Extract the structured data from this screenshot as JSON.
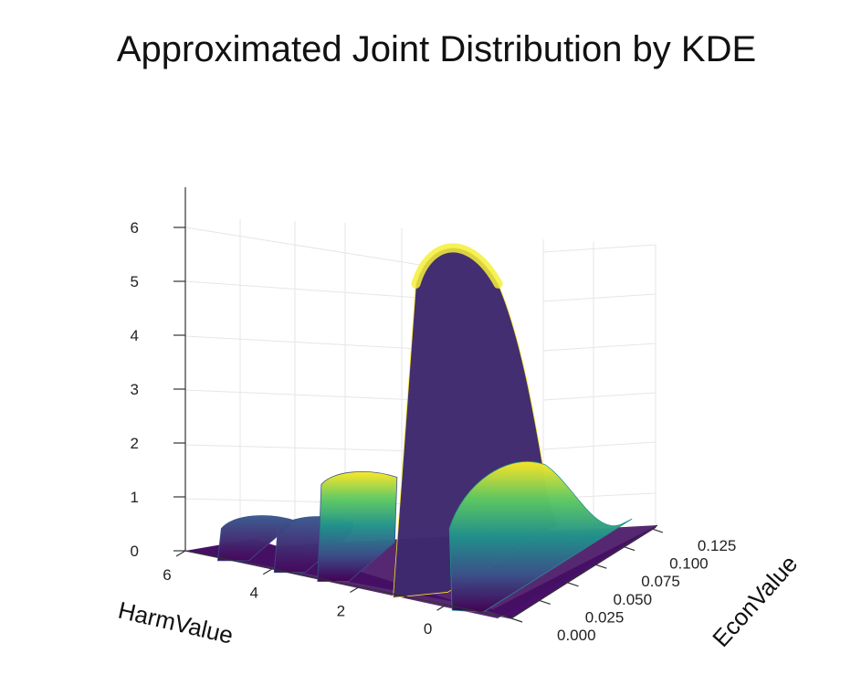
{
  "chart_data": {
    "type": "surface",
    "title": "Approximated Joint Distribution by KDE",
    "xlabel": "HarmValue",
    "ylabel": "EconValue",
    "zlabel": "",
    "x_ticks": [
      "6",
      "4",
      "2",
      "0"
    ],
    "y_ticks": [
      "0.000",
      "0.025",
      "0.050",
      "0.075",
      "0.100",
      "0.125"
    ],
    "z_ticks": [
      "0",
      "1",
      "2",
      "3",
      "4",
      "5",
      "6"
    ],
    "xlim": [
      -1.5,
      6
    ],
    "ylim": [
      0,
      0.13
    ],
    "zlim": [
      0,
      6.6
    ],
    "colorscale": "viridis",
    "colorscale_stops": [
      "#440154",
      "#3b528b",
      "#21918c",
      "#5ec962",
      "#fde725"
    ],
    "x": [
      6,
      5.5,
      5,
      4.5,
      4,
      3.5,
      3,
      2.5,
      2,
      1.5,
      1,
      0.5,
      0,
      -0.5,
      -1,
      -1.5
    ],
    "ridges": [
      {
        "x": 4.9,
        "peak": 0.8
      },
      {
        "x": 3.6,
        "peak": 1.0
      },
      {
        "x": 2.6,
        "peak": 2.0
      },
      {
        "x": 0.8,
        "peak": 6.5
      },
      {
        "x": -0.6,
        "peak": 2.7
      }
    ]
  }
}
